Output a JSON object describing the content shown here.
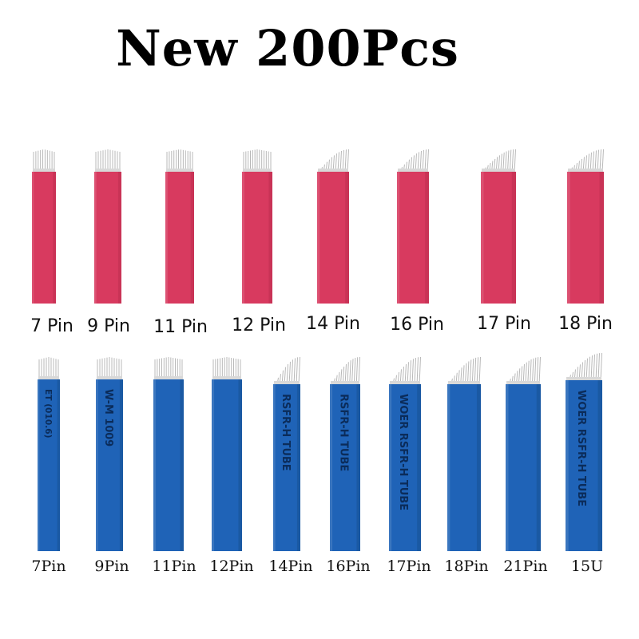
{
  "headline": "New 200Pcs",
  "colors": {
    "red_blade": "#d83a5f",
    "red_blade_shade": "#b92b4d",
    "blue_blade": "#1f63b7",
    "blue_blade_shade": "#16508f",
    "needle": "#b8b8b8"
  },
  "red_row": [
    {
      "label": "7 Pin"
    },
    {
      "label": "9 Pin"
    },
    {
      "label": "11 Pin"
    },
    {
      "label": "12 Pin"
    },
    {
      "label": "14 Pin"
    },
    {
      "label": "16 Pin"
    },
    {
      "label": "17 Pin"
    },
    {
      "label": "18 Pin"
    }
  ],
  "blue_row": [
    {
      "label": "7Pin",
      "print": "ET (010.6)"
    },
    {
      "label": "9Pin",
      "print": "W-M 1009"
    },
    {
      "label": "11Pin",
      "print": ""
    },
    {
      "label": "12Pin",
      "print": ""
    },
    {
      "label": "14Pin",
      "print": "RSFR-H TUBE"
    },
    {
      "label": "16Pin",
      "print": "RSFR-H TUBE"
    },
    {
      "label": "17Pin",
      "print": "WOER RSFR-H TUBE"
    },
    {
      "label": "18Pin",
      "print": ""
    },
    {
      "label": "21Pin",
      "print": ""
    },
    {
      "label": "15U",
      "print": "WOER RSFR-H TUBE"
    }
  ]
}
